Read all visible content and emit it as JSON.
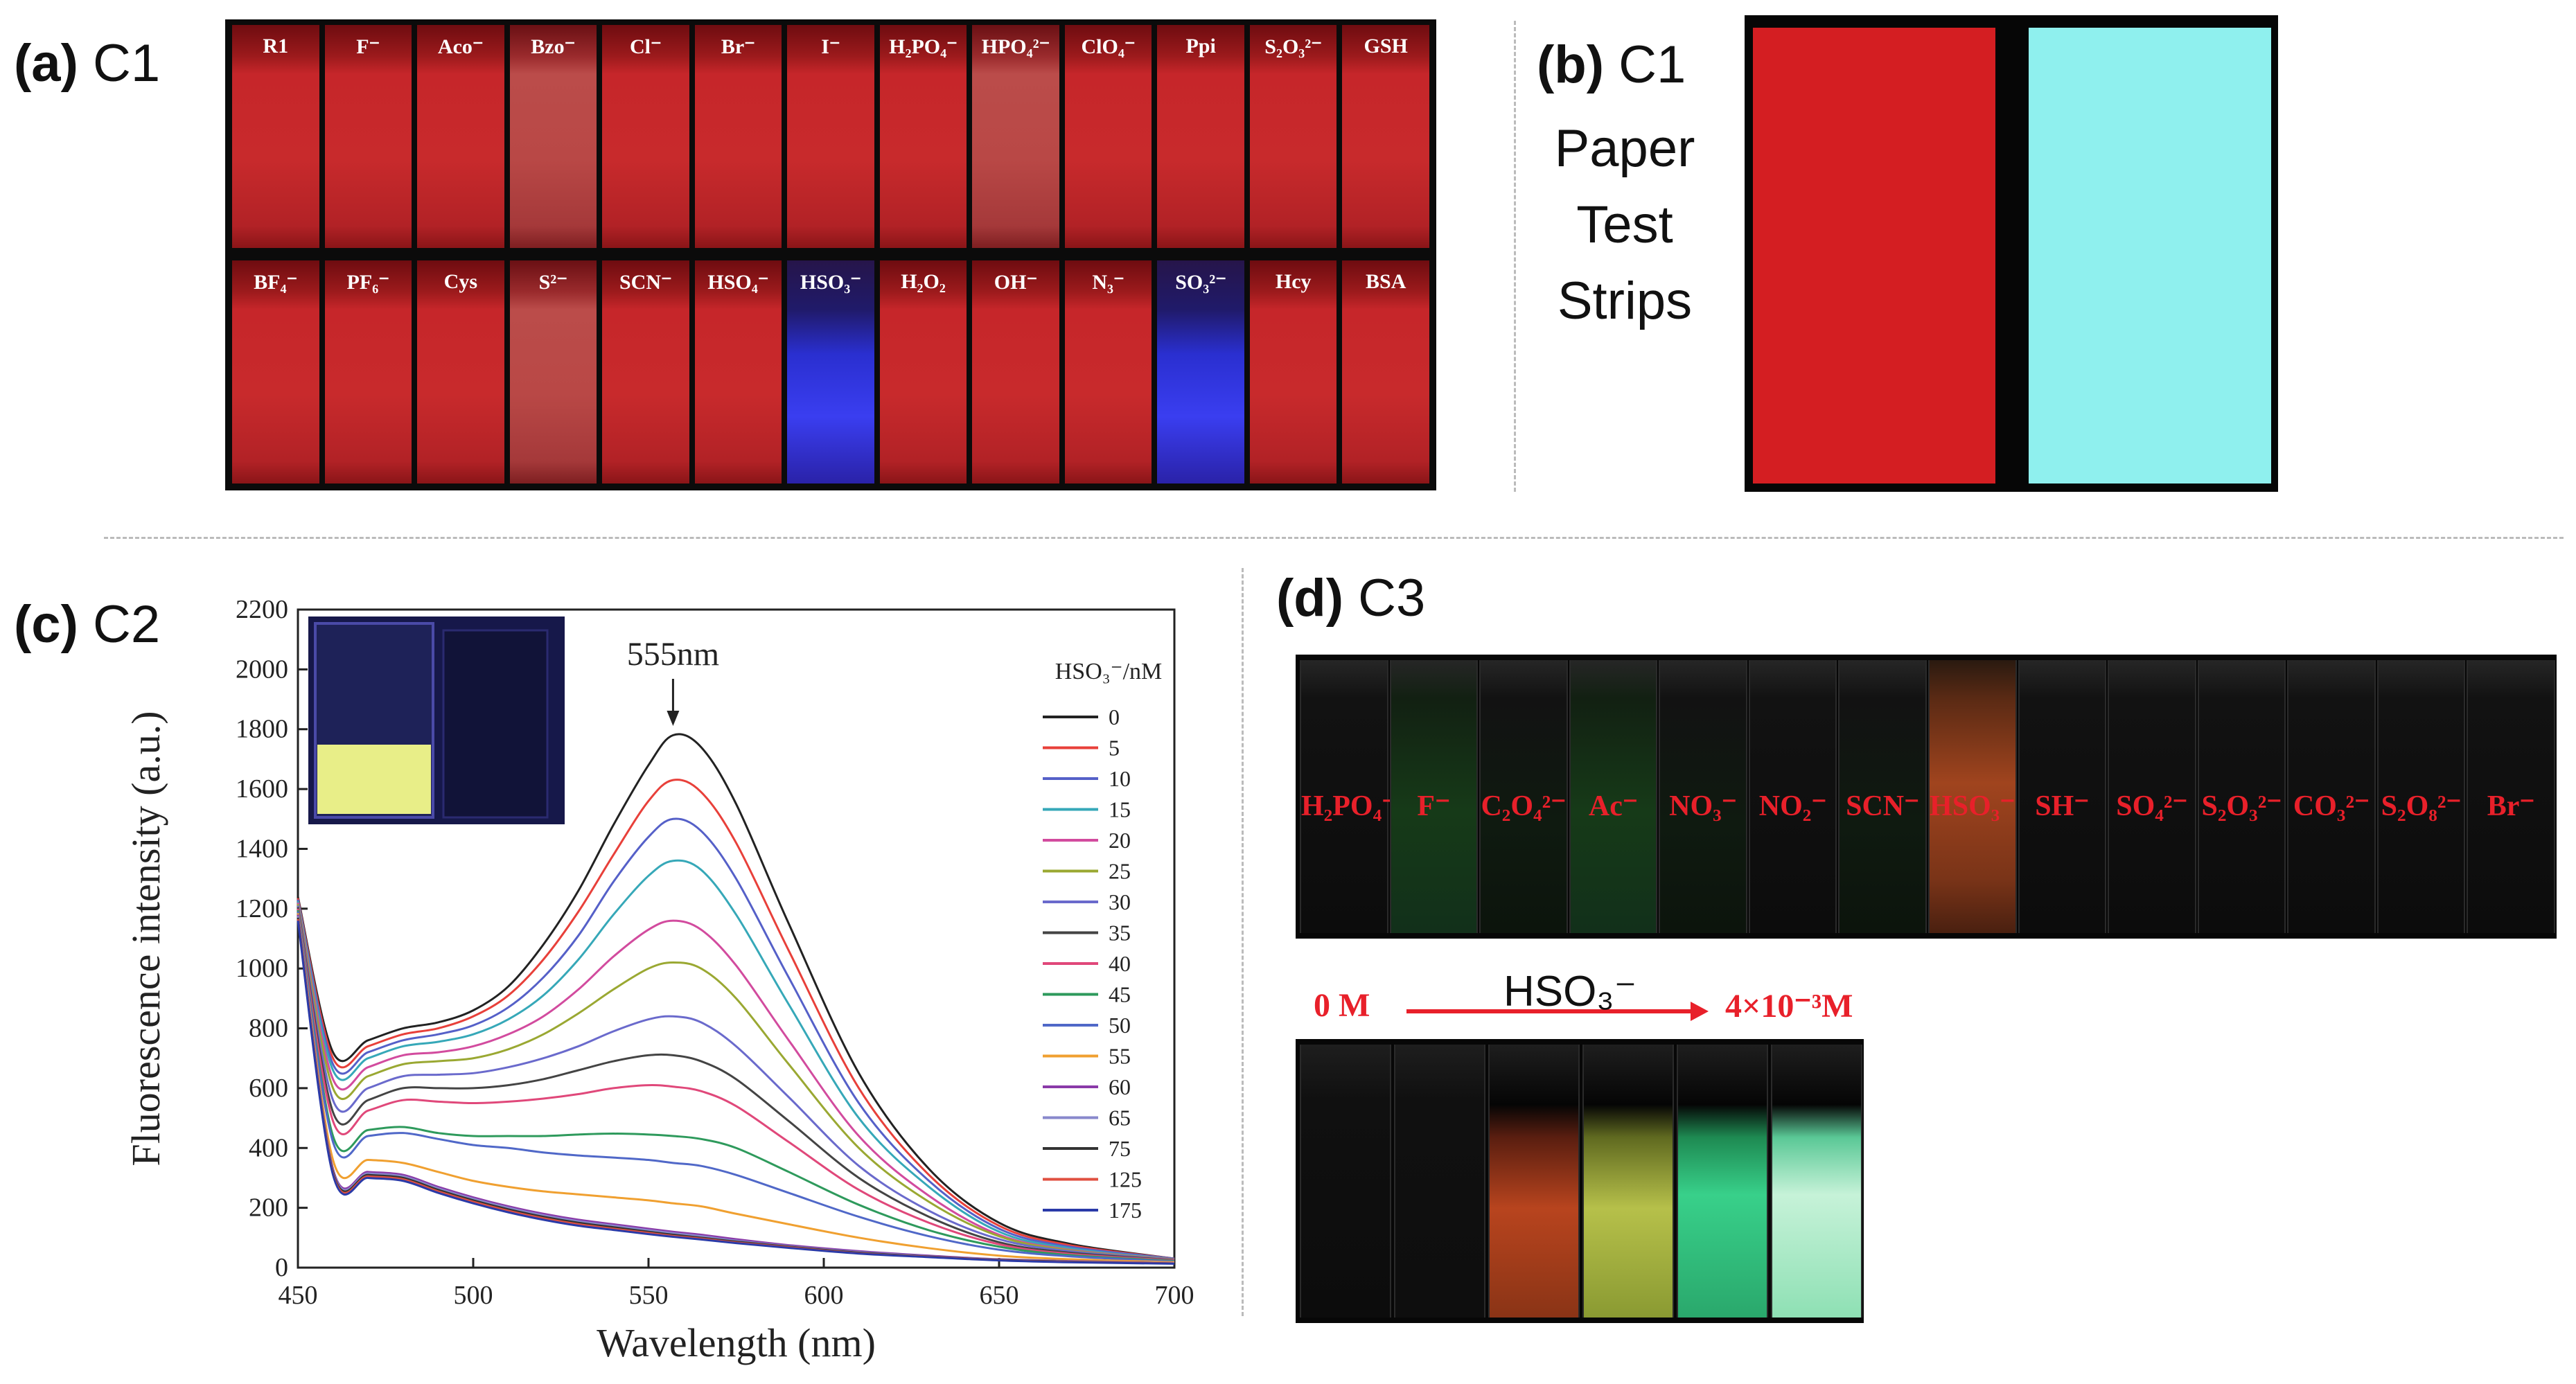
{
  "panel_a": {
    "letter": "(a)",
    "sample": "C1",
    "row1": [
      {
        "label": "R1",
        "tone": "red"
      },
      {
        "label": "F⁻",
        "tone": "red"
      },
      {
        "label": "Aco⁻",
        "tone": "red"
      },
      {
        "label": "Bzo⁻",
        "tone": "dim"
      },
      {
        "label": "Cl⁻",
        "tone": "red"
      },
      {
        "label": "Br⁻",
        "tone": "red"
      },
      {
        "label": "I⁻",
        "tone": "red"
      },
      {
        "label": "H₂PO₄⁻",
        "tone": "red"
      },
      {
        "label": "HPO₄²⁻",
        "tone": "dim"
      },
      {
        "label": "ClO₄⁻",
        "tone": "red"
      },
      {
        "label": "Ppi",
        "tone": "red"
      },
      {
        "label": "S₂O₃²⁻",
        "tone": "red"
      },
      {
        "label": "GSH",
        "tone": "red"
      }
    ],
    "row2": [
      {
        "label": "BF₄⁻",
        "tone": "red"
      },
      {
        "label": "PF₆⁻",
        "tone": "red"
      },
      {
        "label": "Cys",
        "tone": "red"
      },
      {
        "label": "S²⁻",
        "tone": "dim"
      },
      {
        "label": "SCN⁻",
        "tone": "red"
      },
      {
        "label": "HSO₄⁻",
        "tone": "red"
      },
      {
        "label": "HSO₃⁻",
        "tone": "blue"
      },
      {
        "label": "H₂O₂",
        "tone": "red"
      },
      {
        "label": "OH⁻",
        "tone": "red"
      },
      {
        "label": "N₃⁻",
        "tone": "red"
      },
      {
        "label": "SO₃²⁻",
        "tone": "blue"
      },
      {
        "label": "Hcy",
        "tone": "red"
      },
      {
        "label": "BSA",
        "tone": "red"
      }
    ]
  },
  "panel_b": {
    "letter": "(b)",
    "sample": "C1",
    "caption_lines": [
      "Paper",
      "Test",
      "Strips"
    ],
    "strip_colors": [
      "#d41e22",
      "#8ff0ee"
    ]
  },
  "panel_c": {
    "letter": "(c)",
    "sample": "C2",
    "peak_label": "555nm",
    "legend_title": "HSO₃⁻/nM"
  },
  "panel_d": {
    "letter": "(d)",
    "sample": "C3",
    "row1": [
      {
        "label": "H₂PO₄⁻",
        "glow": "none"
      },
      {
        "label": "F⁻",
        "glow": "green"
      },
      {
        "label": "C₂O₄²⁻",
        "glow": "faint"
      },
      {
        "label": "Ac⁻",
        "glow": "green"
      },
      {
        "label": "NO₃⁻",
        "glow": "faint"
      },
      {
        "label": "NO₂⁻",
        "glow": "none"
      },
      {
        "label": "SCN⁻",
        "glow": "faint"
      },
      {
        "label": "HSO₃⁻",
        "glow": "orange"
      },
      {
        "label": "SH⁻",
        "glow": "none"
      },
      {
        "label": "SO₄²⁻",
        "glow": "none"
      },
      {
        "label": "S₂O₃²⁻",
        "glow": "none"
      },
      {
        "label": "CO₃²⁻",
        "glow": "none"
      },
      {
        "label": "S₂O₈²⁻",
        "glow": "none"
      },
      {
        "label": "Br⁻",
        "glow": "none"
      }
    ],
    "row2_start": "0 M",
    "row2_analyte": "HSO₃⁻",
    "row2_end": "4×10⁻³M"
  },
  "chart_data": {
    "type": "line",
    "title": "",
    "xlabel": "Wavelength (nm)",
    "ylabel": "Fluorescence intensity (a.u.)",
    "xlim": [
      450,
      700
    ],
    "ylim": [
      0,
      2200
    ],
    "xticks": [
      450,
      500,
      550,
      600,
      650,
      700
    ],
    "yticks": [
      0,
      200,
      400,
      600,
      800,
      1000,
      1200,
      1400,
      1600,
      1800,
      2000,
      2200
    ],
    "annotation": {
      "text": "555nm",
      "x": 557
    },
    "legend_title": "HSO₃⁻/nM",
    "x": [
      450,
      460,
      470,
      480,
      490,
      500,
      510,
      520,
      530,
      540,
      550,
      557,
      565,
      575,
      590,
      610,
      630,
      650,
      670,
      700
    ],
    "series": [
      {
        "name": "0",
        "color": "#222222",
        "values": [
          1240,
          720,
          760,
          800,
          820,
          860,
          940,
          1080,
          1260,
          1480,
          1680,
          1780,
          1740,
          1550,
          1150,
          650,
          330,
          150,
          80,
          30
        ]
      },
      {
        "name": "5",
        "color": "#e8403a",
        "values": [
          1235,
          700,
          740,
          780,
          800,
          840,
          910,
          1030,
          1190,
          1380,
          1560,
          1630,
          1590,
          1420,
          1060,
          600,
          310,
          140,
          75,
          30
        ]
      },
      {
        "name": "10",
        "color": "#5560c8",
        "values": [
          1230,
          680,
          720,
          760,
          780,
          810,
          870,
          970,
          1110,
          1290,
          1440,
          1500,
          1460,
          1300,
          970,
          550,
          290,
          130,
          70,
          30
        ]
      },
      {
        "name": "15",
        "color": "#36a8b8",
        "values": [
          1225,
          660,
          700,
          740,
          755,
          780,
          830,
          910,
          1030,
          1180,
          1310,
          1360,
          1330,
          1180,
          880,
          500,
          270,
          120,
          65,
          28
        ]
      },
      {
        "name": "20",
        "color": "#d24b9e",
        "values": [
          1220,
          630,
          670,
          710,
          720,
          740,
          780,
          840,
          930,
          1040,
          1130,
          1160,
          1130,
          1010,
          760,
          440,
          240,
          110,
          60,
          28
        ]
      },
      {
        "name": "25",
        "color": "#9aa832",
        "values": [
          1215,
          600,
          640,
          680,
          690,
          700,
          730,
          780,
          850,
          930,
          1000,
          1020,
          1000,
          900,
          680,
          400,
          220,
          105,
          58,
          27
        ]
      },
      {
        "name": "30",
        "color": "#6a6acc",
        "values": [
          1210,
          560,
          600,
          640,
          645,
          650,
          670,
          700,
          740,
          790,
          830,
          840,
          820,
          740,
          570,
          340,
          190,
          95,
          55,
          26
        ]
      },
      {
        "name": "35",
        "color": "#444444",
        "values": [
          1205,
          520,
          560,
          600,
          600,
          600,
          610,
          630,
          660,
          690,
          710,
          710,
          690,
          630,
          490,
          300,
          170,
          85,
          50,
          25
        ]
      },
      {
        "name": "40",
        "color": "#e0487a",
        "values": [
          1200,
          490,
          525,
          560,
          555,
          550,
          555,
          565,
          580,
          600,
          610,
          605,
          590,
          540,
          420,
          260,
          150,
          78,
          46,
          24
        ]
      },
      {
        "name": "45",
        "color": "#2e9a5c",
        "values": [
          1195,
          440,
          460,
          470,
          450,
          440,
          440,
          440,
          445,
          448,
          445,
          440,
          430,
          400,
          320,
          210,
          125,
          70,
          42,
          22
        ]
      },
      {
        "name": "50",
        "color": "#5068c8",
        "values": [
          1190,
          420,
          440,
          450,
          430,
          410,
          400,
          385,
          375,
          368,
          360,
          350,
          340,
          310,
          250,
          170,
          105,
          60,
          38,
          20
        ]
      },
      {
        "name": "55",
        "color": "#f0a030",
        "values": [
          1185,
          360,
          360,
          350,
          320,
          290,
          270,
          255,
          245,
          235,
          225,
          215,
          205,
          180,
          145,
          100,
          65,
          40,
          28,
          18
        ]
      },
      {
        "name": "60",
        "color": "#8a3aa8",
        "values": [
          1180,
          330,
          320,
          310,
          270,
          235,
          205,
          180,
          160,
          145,
          130,
          120,
          110,
          95,
          75,
          55,
          40,
          28,
          22,
          15
        ]
      },
      {
        "name": "65",
        "color": "#8888cc",
        "values": [
          1175,
          325,
          315,
          305,
          265,
          230,
          200,
          175,
          155,
          140,
          125,
          115,
          105,
          90,
          72,
          52,
          38,
          27,
          21,
          15
        ]
      },
      {
        "name": "75",
        "color": "#333333",
        "values": [
          1170,
          320,
          310,
          300,
          260,
          225,
          195,
          170,
          150,
          135,
          120,
          110,
          100,
          87,
          70,
          50,
          37,
          26,
          20,
          14
        ]
      },
      {
        "name": "125",
        "color": "#e05040",
        "values": [
          1165,
          315,
          305,
          295,
          255,
          220,
          190,
          165,
          145,
          130,
          116,
          106,
          97,
          84,
          68,
          48,
          36,
          25,
          19,
          14
        ]
      },
      {
        "name": "175",
        "color": "#2a3aa8",
        "values": [
          1160,
          310,
          300,
          290,
          250,
          215,
          185,
          160,
          140,
          126,
          112,
          103,
          94,
          82,
          66,
          47,
          35,
          24,
          18,
          13
        ]
      }
    ]
  }
}
